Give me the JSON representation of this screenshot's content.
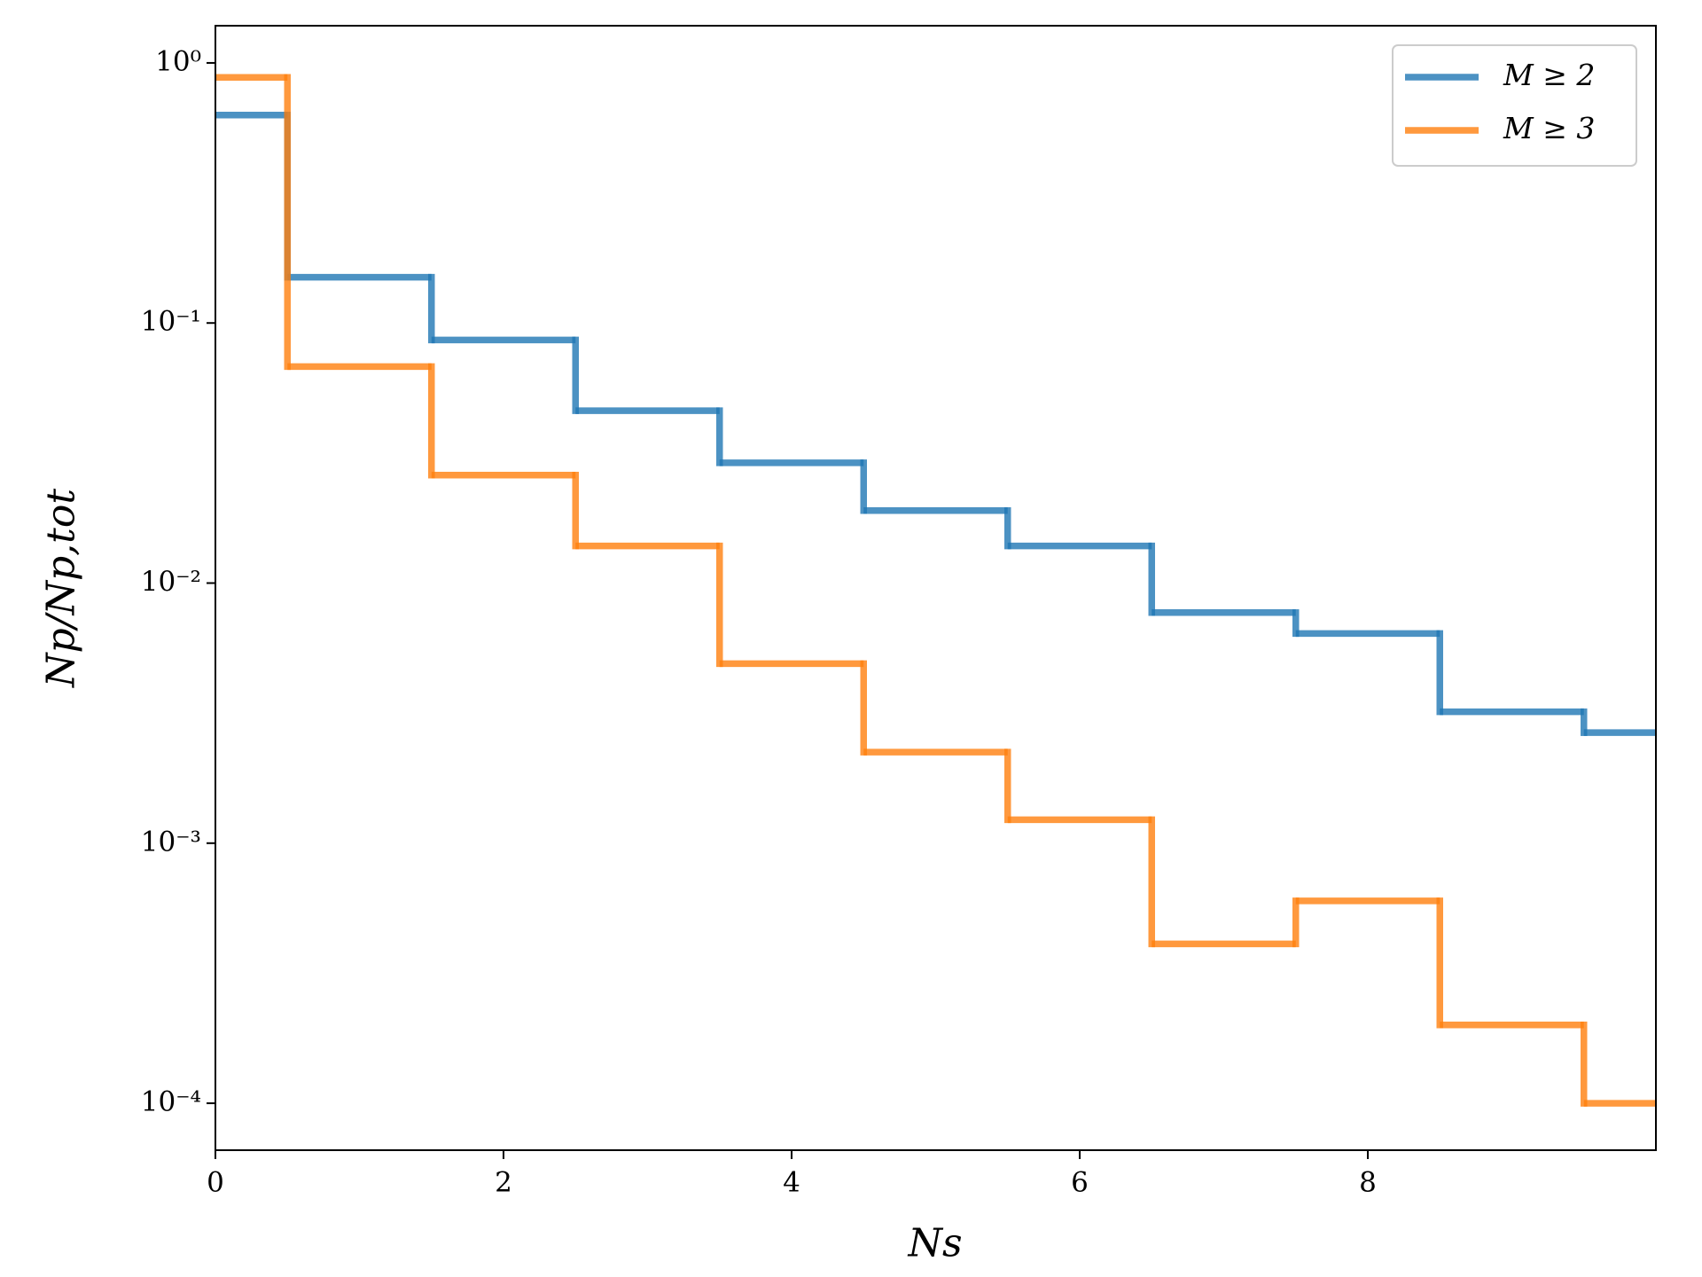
{
  "chart_data": {
    "type": "step-histogram",
    "xlabel": "Ns",
    "ylabel": "Np/Np,tot",
    "bins": [
      -0.5,
      0.5,
      1.5,
      2.5,
      3.5,
      4.5,
      5.5,
      6.5,
      7.5,
      8.5,
      9.5,
      10.5
    ],
    "series": [
      {
        "name": "M ≥ 2",
        "color": "#1f77b4",
        "values": [
          0.63,
          0.15,
          0.086,
          0.046,
          0.029,
          0.019,
          0.0139,
          0.0077,
          0.0064,
          0.0032,
          0.00266
        ]
      },
      {
        "name": "M ≥ 3",
        "color": "#ff7f0e",
        "values": [
          0.88,
          0.068,
          0.026,
          0.0139,
          0.0049,
          0.00224,
          0.00123,
          0.00041,
          0.0006,
          0.0002,
          0.0001
        ]
      }
    ],
    "xlim": [
      0,
      10
    ],
    "xticks": [
      0,
      2,
      4,
      6,
      8
    ],
    "ylim": [
      6.6e-05,
      1.39
    ],
    "log_y": true,
    "yticks": [
      {
        "value": 1,
        "label": "10⁰"
      },
      {
        "value": 0.1,
        "label": "10⁻¹"
      },
      {
        "value": 0.01,
        "label": "10⁻²"
      },
      {
        "value": 0.001,
        "label": "10⁻³"
      },
      {
        "value": 0.0001,
        "label": "10⁻⁴"
      }
    ],
    "legend": "upper right",
    "grid": false
  }
}
